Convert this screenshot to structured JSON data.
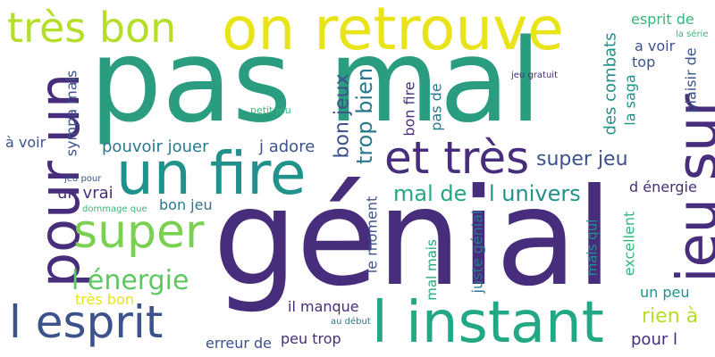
{
  "words": [
    {
      "text": "pas mal",
      "color": "#2a9d80",
      "rot": 0
    },
    {
      "text": "génial",
      "color": "#472d7b",
      "rot": 0
    },
    {
      "text": "on retrouve",
      "color": "#e8e419",
      "rot": 0
    },
    {
      "text": "très bon",
      "color": "#b5de2b",
      "rot": 0
    },
    {
      "text": "pour un",
      "color": "#472d7b",
      "rot": -90
    },
    {
      "text": "un fire",
      "color": "#21918c",
      "rot": 0
    },
    {
      "text": "et très",
      "color": "#472d7b",
      "rot": 0
    },
    {
      "text": "jeu sur",
      "color": "#472d7b",
      "rot": -90
    },
    {
      "text": "super",
      "color": "#7ad151",
      "rot": 0
    },
    {
      "text": "l esprit",
      "color": "#3b528b",
      "rot": 0
    },
    {
      "text": "l instant",
      "color": "#22a884",
      "rot": 0
    },
    {
      "text": "l énergie",
      "color": "#5ec962",
      "rot": 0
    },
    {
      "text": "bon jeux",
      "color": "#3b528b",
      "rot": -90
    },
    {
      "text": "trop bien",
      "color": "#2a788e",
      "rot": -90
    },
    {
      "text": "super jeu",
      "color": "#3b528b",
      "rot": 0
    },
    {
      "text": "mal de",
      "color": "#22a884",
      "rot": 0
    },
    {
      "text": "l univers",
      "color": "#21918c",
      "rot": 0
    },
    {
      "text": "pouvoir jouer",
      "color": "#2a788e",
      "rot": 0
    },
    {
      "text": "j adore",
      "color": "#3b528b",
      "rot": 0
    },
    {
      "text": "sympa mais",
      "color": "#3b528b",
      "rot": -90
    },
    {
      "text": "à voir",
      "color": "#3b528b",
      "rot": 0
    },
    {
      "text": "un vrai",
      "color": "#472d7b",
      "rot": 0
    },
    {
      "text": "bon jeu",
      "color": "#2a788e",
      "rot": 0
    },
    {
      "text": "très bon",
      "color": "#e8e419",
      "rot": 0
    },
    {
      "text": "il manque",
      "color": "#472d7b",
      "rot": 0
    },
    {
      "text": "peu trop",
      "color": "#472d7b",
      "rot": 0
    },
    {
      "text": "erreur de",
      "color": "#3b528b",
      "rot": 0
    },
    {
      "text": "le moment",
      "color": "#3b528b",
      "rot": -90
    },
    {
      "text": "mal mais",
      "color": "#22a884",
      "rot": -90
    },
    {
      "text": "juste génial",
      "color": "#2a788e",
      "rot": -90
    },
    {
      "text": "mais qui",
      "color": "#21918c",
      "rot": -90
    },
    {
      "text": "excellent",
      "color": "#35b779",
      "rot": -90
    },
    {
      "text": "un peu",
      "color": "#21918c",
      "rot": 0
    },
    {
      "text": "rien à",
      "color": "#b5de2b",
      "rot": 0
    },
    {
      "text": "pour l",
      "color": "#472d7b",
      "rot": 0
    },
    {
      "text": "d énergie",
      "color": "#472d7b",
      "rot": 0
    },
    {
      "text": "des combats",
      "color": "#21918c",
      "rot": -90
    },
    {
      "text": "la saga",
      "color": "#21918c",
      "rot": -90
    },
    {
      "text": "top",
      "color": "#3b528b",
      "rot": 0
    },
    {
      "text": "a voir",
      "color": "#3b528b",
      "rot": 0
    },
    {
      "text": "esprit de",
      "color": "#35b779",
      "rot": 0
    },
    {
      "text": "la série",
      "color": "#35b779",
      "rot": 0
    },
    {
      "text": "plaisir de",
      "color": "#3b528b",
      "rot": -90
    },
    {
      "text": "bon fire",
      "color": "#472d7b",
      "rot": -90
    },
    {
      "text": "pas de",
      "color": "#2a788e",
      "rot": -90
    },
    {
      "text": "jeu gratuit",
      "color": "#472d7b",
      "rot": 0
    },
    {
      "text": "petit jeu",
      "color": "#35b779",
      "rot": 0
    },
    {
      "text": "jeu pour",
      "color": "#3b528b",
      "rot": 0
    },
    {
      "text": "dommage que",
      "color": "#35b779",
      "rot": 0
    },
    {
      "text": "au début",
      "color": "#2a788e",
      "rot": 0
    }
  ]
}
